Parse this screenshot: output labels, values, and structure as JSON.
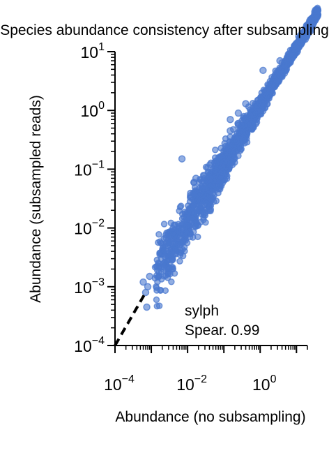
{
  "chart_data": {
    "type": "scatter",
    "title": "Species abundance consistency after subsampling",
    "xlabel": "Abundance (no subsampling)",
    "ylabel": "Abundance (subsampled reads)",
    "x_scale": "log",
    "y_scale": "log",
    "xlim": [
      0.0001,
      20
    ],
    "ylim": [
      0.0001,
      10
    ],
    "x_ticks": [
      {
        "value": 0.0001,
        "base": "10",
        "exp": "−4"
      },
      {
        "value": 0.01,
        "base": "10",
        "exp": "−2"
      },
      {
        "value": 1,
        "base": "10",
        "exp": "0"
      }
    ],
    "y_ticks": [
      {
        "value": 0.0001,
        "base": "10",
        "exp": "−4"
      },
      {
        "value": 0.001,
        "base": "10",
        "exp": "−3"
      },
      {
        "value": 0.01,
        "base": "10",
        "exp": "−2"
      },
      {
        "value": 0.1,
        "base": "10",
        "exp": "−1"
      },
      {
        "value": 1,
        "base": "10",
        "exp": "0"
      },
      {
        "value": 10,
        "base": "10",
        "exp": "1"
      }
    ],
    "reference_line": {
      "style": "dashed",
      "color": "#000000",
      "from": [
        0.0001,
        0.0001
      ],
      "to": [
        0.0007,
        0.0008
      ]
    },
    "annotation": {
      "lines": [
        "sylph",
        "Spear. 0.99"
      ],
      "position": "bottom-right"
    },
    "marker_color": "#4a78cf",
    "outlier_points": [
      [
        0.00075,
        0.00045
      ],
      [
        0.0007,
        0.0008
      ],
      [
        0.0008,
        0.001
      ],
      [
        0.0009,
        0.0015
      ],
      [
        0.007,
        0.15
      ],
      [
        0.0006,
        0.0012
      ],
      [
        0.015,
        0.06
      ],
      [
        0.017,
        0.07
      ],
      [
        0.03,
        0.018
      ],
      [
        0.06,
        0.045
      ],
      [
        0.12,
        0.2
      ],
      [
        0.15,
        0.7
      ],
      [
        0.15,
        0.45
      ],
      [
        0.15,
        0.35
      ],
      [
        0.25,
        0.6
      ],
      [
        0.25,
        0.9
      ],
      [
        0.4,
        1.3
      ],
      [
        0.6,
        0.9
      ],
      [
        1.2,
        4.8
      ],
      [
        3.5,
        7
      ],
      [
        6,
        9
      ]
    ]
  }
}
